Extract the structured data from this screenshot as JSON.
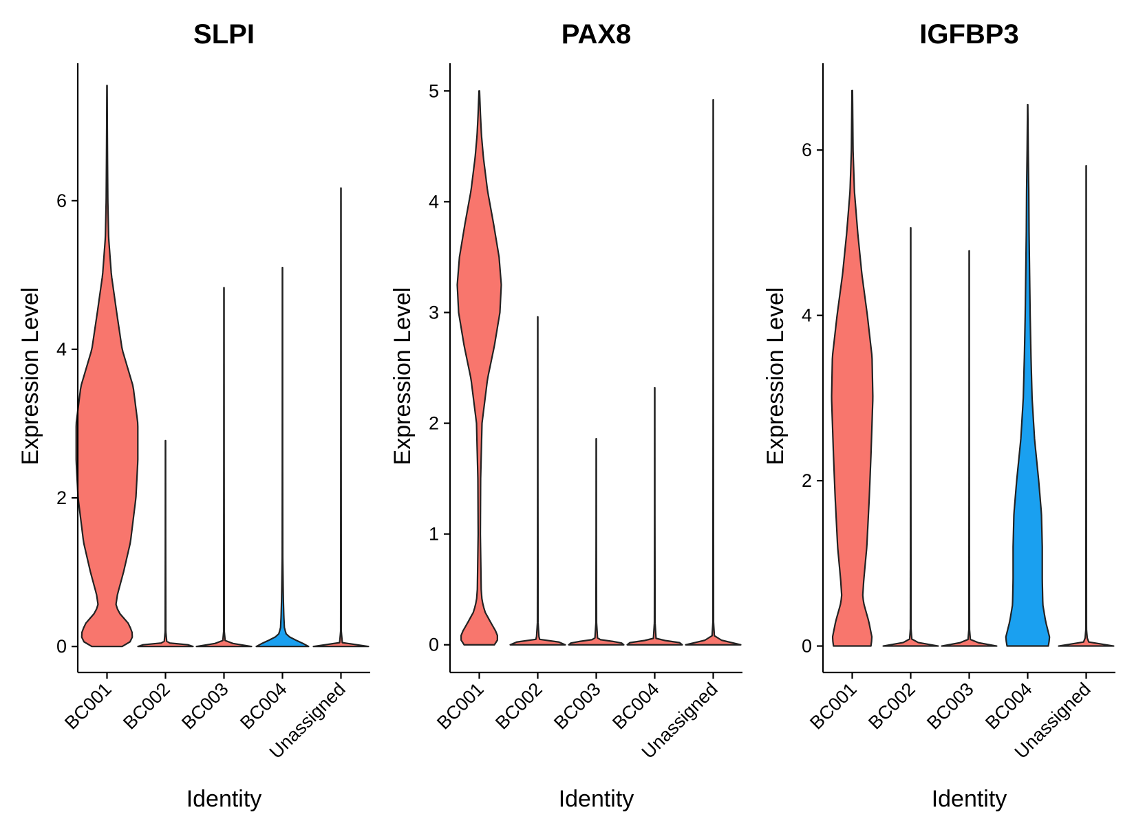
{
  "chart_data": [
    {
      "type": "violin",
      "title": "SLPI",
      "xlabel": "Identity",
      "ylabel": "Expression Level",
      "categories": [
        "BC001",
        "BC002",
        "BC003",
        "BC004",
        "Unassigned"
      ],
      "ylim": [
        -0.35,
        7.85
      ],
      "yticks": [
        0,
        2,
        4,
        6
      ],
      "groups": [
        {
          "name": "BC001",
          "color": "#F8766D",
          "max": 7.55,
          "profile": [
            [
              0,
              0.55
            ],
            [
              0.05,
              0.82
            ],
            [
              0.15,
              0.95
            ],
            [
              0.3,
              0.8
            ],
            [
              0.45,
              0.45
            ],
            [
              0.55,
              0.32
            ],
            [
              0.7,
              0.38
            ],
            [
              1.0,
              0.6
            ],
            [
              1.4,
              0.85
            ],
            [
              2.0,
              1.05
            ],
            [
              2.5,
              1.12
            ],
            [
              3.0,
              1.12
            ],
            [
              3.5,
              0.95
            ],
            [
              4.0,
              0.55
            ],
            [
              4.5,
              0.35
            ],
            [
              5.0,
              0.16
            ],
            [
              5.5,
              0.06
            ],
            [
              6.0,
              0.03
            ],
            [
              6.5,
              0.02
            ],
            [
              7.0,
              0.012
            ],
            [
              7.55,
              0.005
            ]
          ]
        },
        {
          "name": "BC002",
          "color": "#F8766D",
          "max": 2.77,
          "profile": [
            [
              0,
              1.0
            ],
            [
              0.02,
              0.9
            ],
            [
              0.05,
              0.05
            ],
            [
              0.2,
              0.012
            ],
            [
              1.5,
              0.006
            ],
            [
              2.77,
              0.004
            ]
          ]
        },
        {
          "name": "BC003",
          "color": "#F8766D",
          "max": 4.83,
          "profile": [
            [
              0,
              1.0
            ],
            [
              0.02,
              0.9
            ],
            [
              0.05,
              0.05
            ],
            [
              0.2,
              0.012
            ],
            [
              2.5,
              0.006
            ],
            [
              4.83,
              0.004
            ]
          ]
        },
        {
          "name": "BC004",
          "color": "#1AA0F0",
          "max": 5.1,
          "profile": [
            [
              0,
              0.95
            ],
            [
              0.04,
              0.75
            ],
            [
              0.1,
              0.4
            ],
            [
              0.15,
              0.15
            ],
            [
              0.25,
              0.07
            ],
            [
              0.4,
              0.05
            ],
            [
              0.6,
              0.035
            ],
            [
              0.8,
              0.025
            ],
            [
              1.2,
              0.01
            ],
            [
              2.5,
              0.006
            ],
            [
              5.1,
              0.004
            ]
          ]
        },
        {
          "name": "Unassigned",
          "color": "#F8766D",
          "max": 6.17,
          "profile": [
            [
              0,
              1.0
            ],
            [
              0.02,
              0.9
            ],
            [
              0.05,
              0.05
            ],
            [
              0.2,
              0.012
            ],
            [
              3.0,
              0.006
            ],
            [
              6.17,
              0.004
            ]
          ]
        }
      ]
    },
    {
      "type": "violin",
      "title": "PAX8",
      "xlabel": "Identity",
      "ylabel": "Expression Level",
      "categories": [
        "BC001",
        "BC002",
        "BC003",
        "BC004",
        "Unassigned"
      ],
      "ylim": [
        -0.25,
        5.25
      ],
      "yticks": [
        0,
        1,
        2,
        3,
        4,
        5
      ],
      "groups": [
        {
          "name": "BC001",
          "color": "#F8766D",
          "max": 5.0,
          "profile": [
            [
              0,
              0.55
            ],
            [
              0.05,
              0.68
            ],
            [
              0.1,
              0.65
            ],
            [
              0.2,
              0.42
            ],
            [
              0.3,
              0.2
            ],
            [
              0.4,
              0.1
            ],
            [
              0.5,
              0.07
            ],
            [
              1.0,
              0.04
            ],
            [
              1.5,
              0.05
            ],
            [
              2.0,
              0.1
            ],
            [
              2.4,
              0.3
            ],
            [
              2.7,
              0.55
            ],
            [
              3.0,
              0.75
            ],
            [
              3.25,
              0.8
            ],
            [
              3.5,
              0.72
            ],
            [
              3.8,
              0.52
            ],
            [
              4.1,
              0.3
            ],
            [
              4.4,
              0.15
            ],
            [
              4.6,
              0.08
            ],
            [
              4.8,
              0.04
            ],
            [
              5.0,
              0.01
            ]
          ]
        },
        {
          "name": "BC002",
          "color": "#F8766D",
          "max": 2.96,
          "profile": [
            [
              0,
              1.0
            ],
            [
              0.02,
              0.9
            ],
            [
              0.05,
              0.05
            ],
            [
              0.2,
              0.012
            ],
            [
              1.5,
              0.006
            ],
            [
              2.96,
              0.004
            ]
          ]
        },
        {
          "name": "BC003",
          "color": "#F8766D",
          "max": 1.86,
          "profile": [
            [
              0,
              1.0
            ],
            [
              0.02,
              0.9
            ],
            [
              0.05,
              0.05
            ],
            [
              0.2,
              0.012
            ],
            [
              1.0,
              0.006
            ],
            [
              1.86,
              0.004
            ]
          ]
        },
        {
          "name": "BC004",
          "color": "#F8766D",
          "max": 2.32,
          "profile": [
            [
              0,
              1.0
            ],
            [
              0.02,
              0.9
            ],
            [
              0.05,
              0.05
            ],
            [
              0.2,
              0.012
            ],
            [
              1.2,
              0.006
            ],
            [
              2.32,
              0.004
            ]
          ]
        },
        {
          "name": "Unassigned",
          "color": "#F8766D",
          "max": 4.92,
          "profile": [
            [
              0,
              1.0
            ],
            [
              0.02,
              0.9
            ],
            [
              0.05,
              0.05
            ],
            [
              0.2,
              0.012
            ],
            [
              2.5,
              0.006
            ],
            [
              4.92,
              0.004
            ]
          ]
        }
      ]
    },
    {
      "type": "violin",
      "title": "IGFBP3",
      "xlabel": "Identity",
      "ylabel": "Expression Level",
      "categories": [
        "BC001",
        "BC002",
        "BC003",
        "BC004",
        "Unassigned"
      ],
      "ylim": [
        -0.32,
        7.05
      ],
      "yticks": [
        0,
        2,
        4,
        6
      ],
      "groups": [
        {
          "name": "BC001",
          "color": "#F8766D",
          "max": 6.72,
          "profile": [
            [
              0,
              0.68
            ],
            [
              0.1,
              0.72
            ],
            [
              0.3,
              0.6
            ],
            [
              0.5,
              0.43
            ],
            [
              0.6,
              0.38
            ],
            [
              0.8,
              0.42
            ],
            [
              1.2,
              0.53
            ],
            [
              1.8,
              0.62
            ],
            [
              2.3,
              0.68
            ],
            [
              3.0,
              0.75
            ],
            [
              3.5,
              0.72
            ],
            [
              4.0,
              0.55
            ],
            [
              4.5,
              0.35
            ],
            [
              5.0,
              0.2
            ],
            [
              5.5,
              0.08
            ],
            [
              6.0,
              0.03
            ],
            [
              6.72,
              0.01
            ]
          ]
        },
        {
          "name": "BC002",
          "color": "#F8766D",
          "max": 5.06,
          "profile": [
            [
              0,
              1.0
            ],
            [
              0.02,
              0.9
            ],
            [
              0.05,
              0.05
            ],
            [
              0.2,
              0.012
            ],
            [
              2.5,
              0.006
            ],
            [
              5.06,
              0.004
            ]
          ]
        },
        {
          "name": "BC003",
          "color": "#F8766D",
          "max": 4.78,
          "profile": [
            [
              0,
              1.0
            ],
            [
              0.02,
              0.9
            ],
            [
              0.05,
              0.05
            ],
            [
              0.2,
              0.012
            ],
            [
              2.5,
              0.006
            ],
            [
              4.78,
              0.004
            ]
          ]
        },
        {
          "name": "BC004",
          "color": "#1AA0F0",
          "max": 6.55,
          "profile": [
            [
              0,
              0.75
            ],
            [
              0.1,
              0.8
            ],
            [
              0.3,
              0.65
            ],
            [
              0.5,
              0.55
            ],
            [
              0.8,
              0.53
            ],
            [
              1.2,
              0.53
            ],
            [
              1.6,
              0.5
            ],
            [
              2.0,
              0.4
            ],
            [
              2.5,
              0.25
            ],
            [
              3.0,
              0.16
            ],
            [
              3.5,
              0.12
            ],
            [
              4.0,
              0.09
            ],
            [
              4.5,
              0.07
            ],
            [
              5.0,
              0.05
            ],
            [
              5.5,
              0.04
            ],
            [
              6.0,
              0.02
            ],
            [
              6.55,
              0.005
            ]
          ]
        },
        {
          "name": "Unassigned",
          "color": "#F8766D",
          "max": 5.81,
          "profile": [
            [
              0,
              1.0
            ],
            [
              0.02,
              0.9
            ],
            [
              0.05,
              0.05
            ],
            [
              0.2,
              0.012
            ],
            [
              3.0,
              0.006
            ],
            [
              5.81,
              0.004
            ]
          ]
        }
      ]
    }
  ]
}
